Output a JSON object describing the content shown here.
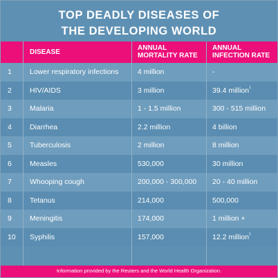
{
  "title_line1": "TOP DEADLY DISEASES OF",
  "title_line2": "THE DEVELOPING WORLD",
  "header": {
    "disease": "DISEASE",
    "mortality_1": "ANNUAL",
    "mortality_2": "MORTALITY RATE",
    "infection_1": "ANNUAL",
    "infection_2": "INFECTION RATE"
  },
  "rows": [
    {
      "num": "1",
      "disease": "Lower respiratory infections",
      "mortality": "4 million",
      "infection": "-",
      "note": ""
    },
    {
      "num": "2",
      "disease": "HIV/AIDS",
      "mortality": "3 million",
      "infection": "39.4 million",
      "note": "1"
    },
    {
      "num": "3",
      "disease": "Malaria",
      "mortality": "1 - 1.5 million",
      "infection": "300 - 515 million",
      "note": ""
    },
    {
      "num": "4",
      "disease": "Diarrhea",
      "mortality": "2.2 million",
      "infection": "4 billion",
      "note": ""
    },
    {
      "num": "5",
      "disease": "Tuberculosis",
      "mortality": "2 million",
      "infection": "8 million",
      "note": ""
    },
    {
      "num": "6",
      "disease": "Measles",
      "mortality": "530,000",
      "infection": "30 million",
      "note": ""
    },
    {
      "num": "7",
      "disease": "Whooping cough",
      "mortality": "200,000 - 300,000",
      "infection": "20 - 40 million",
      "note": ""
    },
    {
      "num": "8",
      "disease": "Tetanus",
      "mortality": "214,000",
      "infection": "500,000",
      "note": ""
    },
    {
      "num": "9",
      "disease": "Meningitis",
      "mortality": "174,000",
      "infection": "1 million +",
      "note": ""
    },
    {
      "num": "10",
      "disease": "Syphilis",
      "mortality": "157,000",
      "infection": "12.2 million",
      "note": "1"
    }
  ],
  "footer": "Information provided by the Reuters and the World Health Organization."
}
